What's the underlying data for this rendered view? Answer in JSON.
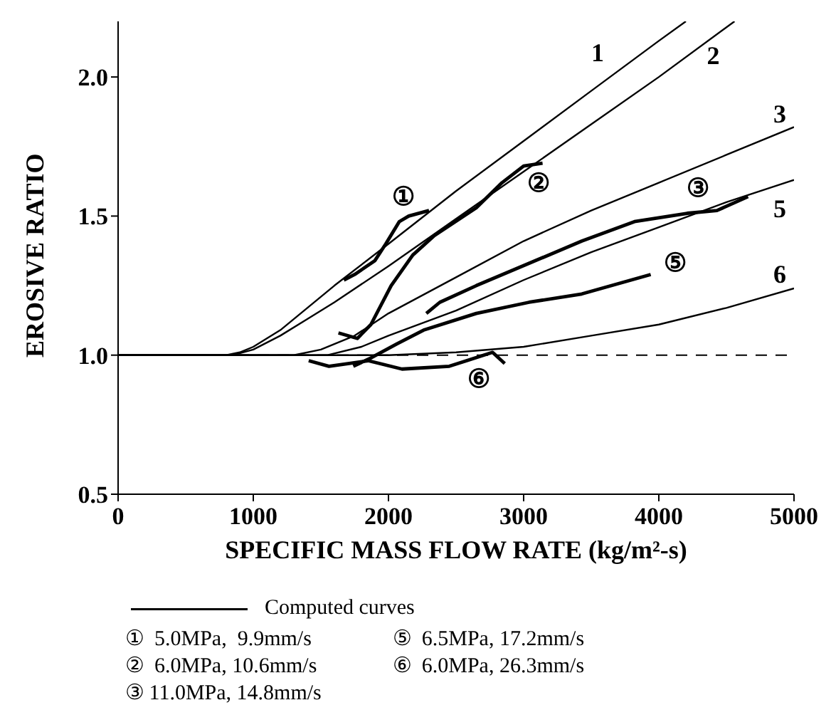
{
  "chart_data": {
    "type": "line",
    "xlabel": "SPECIFIC MASS FLOW RATE (kg/m²-s)",
    "ylabel": "EROSIVE RATIO",
    "xlim": [
      0,
      5000
    ],
    "xticks": [
      0,
      1000,
      2000,
      3000,
      4000,
      5000
    ],
    "ylim": [
      0.5,
      2.2
    ],
    "yticks": [
      {
        "value": 0.5,
        "label": "0.5"
      },
      {
        "value": 1.0,
        "label": "1.0"
      },
      {
        "value": 1.5,
        "label": "1.5"
      },
      {
        "value": 2.0,
        "label": "2.0"
      }
    ],
    "grid": false,
    "legend": false,
    "marker": "none",
    "line_style": "solid",
    "ref_lines": [
      {
        "axis": "y",
        "value": 1.0,
        "line_style": "dashed",
        "color": "#000000"
      }
    ],
    "series": [
      {
        "name": "1",
        "color": "#000000",
        "x": [
          0,
          800,
          900,
          1000,
          1200,
          1400,
          1600,
          2000,
          2500,
          3000,
          3500,
          4000,
          4200
        ],
        "values": [
          1,
          1,
          1.01,
          1.03,
          1.09,
          1.17,
          1.25,
          1.4,
          1.59,
          1.77,
          1.95,
          2.13,
          2.2
        ]
      },
      {
        "name": "2",
        "color": "#000000",
        "x": [
          0,
          850,
          1000,
          1200,
          1400,
          1600,
          2000,
          2500,
          3000,
          3500,
          4000,
          4560
        ],
        "values": [
          1,
          1,
          1.02,
          1.07,
          1.13,
          1.19,
          1.32,
          1.49,
          1.66,
          1.83,
          2.0,
          2.2
        ]
      },
      {
        "name": "3",
        "color": "#000000",
        "x": [
          0,
          1300,
          1500,
          1750,
          2000,
          2500,
          3000,
          3500,
          4000,
          4500,
          5000
        ],
        "values": [
          1,
          1,
          1.02,
          1.07,
          1.15,
          1.28,
          1.41,
          1.52,
          1.62,
          1.72,
          1.82
        ]
      },
      {
        "name": "5",
        "color": "#000000",
        "x": [
          0,
          1550,
          1800,
          2000,
          2500,
          3000,
          3500,
          4000,
          4500,
          5000
        ],
        "values": [
          1,
          1,
          1.03,
          1.07,
          1.16,
          1.27,
          1.37,
          1.46,
          1.55,
          1.63
        ]
      },
      {
        "name": "6",
        "color": "#000000",
        "x": [
          0,
          2000,
          2500,
          3000,
          3500,
          4000,
          4500,
          5000
        ],
        "values": [
          1,
          1,
          1.01,
          1.03,
          1.07,
          1.11,
          1.17,
          1.24
        ]
      },
      {
        "name": "①",
        "color": "#000000",
        "x": [
          1670,
          1750,
          1900,
          1980,
          2080,
          2150,
          2300
        ],
        "values": [
          1.27,
          1.29,
          1.34,
          1.4,
          1.48,
          1.5,
          1.52
        ]
      },
      {
        "name": "②",
        "color": "#000000",
        "x": [
          1630,
          1770,
          1870,
          2020,
          2180,
          2340,
          2650,
          2840,
          3000,
          3140
        ],
        "values": [
          1.08,
          1.06,
          1.11,
          1.25,
          1.36,
          1.43,
          1.53,
          1.62,
          1.68,
          1.69
        ]
      },
      {
        "name": "③",
        "color": "#000000",
        "x": [
          2280,
          2380,
          2650,
          3040,
          3430,
          3820,
          4210,
          4430,
          4660
        ],
        "values": [
          1.15,
          1.19,
          1.25,
          1.33,
          1.41,
          1.48,
          1.51,
          1.52,
          1.57
        ]
      },
      {
        "name": "⑤",
        "color": "#000000",
        "x": [
          1740,
          1870,
          2060,
          2260,
          2650,
          3040,
          3430,
          3940
        ],
        "values": [
          0.96,
          0.99,
          1.04,
          1.09,
          1.15,
          1.19,
          1.22,
          1.29
        ]
      },
      {
        "name": "⑥",
        "color": "#000000",
        "x": [
          1410,
          1560,
          1710,
          1850,
          2100,
          2450,
          2770,
          2860
        ],
        "values": [
          0.98,
          0.96,
          0.97,
          0.98,
          0.95,
          0.96,
          1.01,
          0.97
        ]
      }
    ],
    "annotations": [
      "Computed curves",
      "①  5.0MPa,  9.9mm/s",
      "②  6.0MPa, 10.6mm/s",
      "③ 11.0MPa, 14.8mm/s",
      "⑤  6.5MPa, 17.2mm/s",
      "⑥  6.0MPa, 26.3mm/s"
    ]
  }
}
